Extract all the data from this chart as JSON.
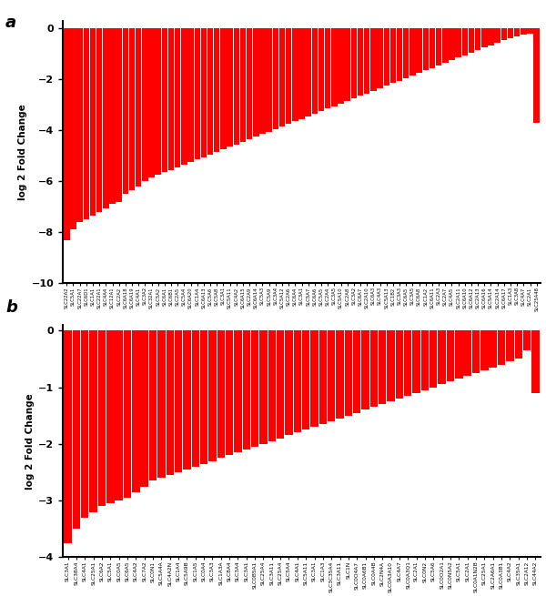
{
  "panel_a": {
    "labels": [
      "SLC22A2",
      "SLC5A1",
      "SLC22A7",
      "SLC6D1",
      "SLC1A1",
      "SLC22A1",
      "SLC4A4",
      "SLC12A1",
      "SLC2A2",
      "SLC6A18",
      "SLC6A19",
      "SLC4A1",
      "SLC3A2",
      "SLC32A1",
      "SLC5A2",
      "SLC6A1",
      "SLC6B1",
      "SLC2A5",
      "SLC5A4",
      "SLC6A20",
      "SLC1A4",
      "SLC6A13",
      "SLC5A6",
      "SLC5A8",
      "SLC3A1",
      "SLC5A11",
      "SLC4A2",
      "SLC6A15",
      "SLC2A9",
      "SLC6A14",
      "SLC5A3",
      "SLC5A9",
      "SLC3A4",
      "SLC5A12",
      "SLC2A6",
      "SLC6A4",
      "SLC3A1",
      "SLC5A7",
      "SLC6A6",
      "SLC5A5",
      "SLC2A4",
      "SLC3A5",
      "SLC5A10",
      "SLC2A8",
      "SLC3A2",
      "SLC6A7",
      "SLC2A10",
      "SLC6A3",
      "SLC4A3",
      "SLC5A13",
      "SLC1B2",
      "SLC3A3",
      "SLC6A5",
      "SLC3A5",
      "SLC6A8",
      "SLC1A2",
      "SLC6A11",
      "SLC2A3",
      "SLC2A7",
      "SLC4A5",
      "SLC2A11",
      "SLC6A10",
      "SLC6A12",
      "SLC2A13",
      "SLC6A16",
      "SLC5A14",
      "SLC2A14",
      "SLC6A17",
      "SLC1A3",
      "SLC3A8",
      "SLC4A7",
      "SLC2A1",
      "SLC25A48"
    ],
    "values": [
      -8.3,
      -7.9,
      -7.6,
      -7.5,
      -7.35,
      -7.2,
      -7.05,
      -6.9,
      -6.8,
      -6.5,
      -6.35,
      -6.2,
      -6.0,
      -5.85,
      -5.75,
      -5.65,
      -5.55,
      -5.45,
      -5.35,
      -5.25,
      -5.15,
      -5.05,
      -4.95,
      -4.85,
      -4.75,
      -4.65,
      -4.55,
      -4.45,
      -4.35,
      -4.25,
      -4.15,
      -4.05,
      -3.95,
      -3.85,
      -3.75,
      -3.65,
      -3.55,
      -3.45,
      -3.35,
      -3.25,
      -3.15,
      -3.05,
      -2.95,
      -2.85,
      -2.75,
      -2.65,
      -2.55,
      -2.45,
      -2.35,
      -2.25,
      -2.15,
      -2.05,
      -1.95,
      -1.85,
      -1.75,
      -1.65,
      -1.55,
      -1.45,
      -1.35,
      -1.25,
      -1.15,
      -1.05,
      -0.95,
      -0.85,
      -0.75,
      -0.65,
      -0.55,
      -0.45,
      -0.38,
      -0.3,
      -0.25,
      -0.2,
      -3.7
    ],
    "ylim": [
      -10,
      0.3
    ],
    "yticks": [
      0,
      -2,
      -4,
      -6,
      -8,
      -10
    ],
    "ylabel": "log 2 Fold Change"
  },
  "panel_b": {
    "labels": [
      "SLC3A1",
      "SLC38A4",
      "SLC4A1",
      "SLC25A1",
      "SLC6A2",
      "SLC5A1",
      "SLC0A5",
      "SLC6A5",
      "SLC4A2",
      "SLC7A2",
      "SLC0N1",
      "SLC5A4A",
      "SLC4A2N",
      "SLC1A4",
      "SLC5A9B",
      "SLC1A5",
      "SLC0A4",
      "SLC3A3",
      "SLC1A3A",
      "SLC8A4",
      "SLC3A4",
      "SLC3A1",
      "SLC0B5A1",
      "SLC25A4",
      "SLC3A11",
      "SLC25A4",
      "SLC5A4",
      "SLC4A1",
      "SLC5A11",
      "SLC3A1",
      "SLC1A3",
      "SLC3C35A4",
      "SLC3A11",
      "SLC1N",
      "SLC0O4A7",
      "SLC0A6B1",
      "SLC0A4B",
      "SLC2N4A",
      "SLC0A3A10",
      "SLC4A7",
      "SLC0A3Q1",
      "SLC2A1",
      "SLC0N2",
      "SLC5A6",
      "SLC0O2A1",
      "SLC0N5A2",
      "SLC5A1",
      "SLC2A1",
      "SLC0A1N2B",
      "SLC25A1",
      "SLC2A6A1",
      "SLC0A3B1",
      "SLC4A2",
      "SLC35A1",
      "SLC2A12",
      "SLC44A2"
    ],
    "values": [
      -3.75,
      -3.5,
      -3.3,
      -3.2,
      -3.1,
      -3.05,
      -3.0,
      -2.95,
      -2.85,
      -2.75,
      -2.65,
      -2.6,
      -2.55,
      -2.5,
      -2.45,
      -2.4,
      -2.35,
      -2.3,
      -2.25,
      -2.2,
      -2.15,
      -2.1,
      -2.05,
      -2.0,
      -1.95,
      -1.9,
      -1.85,
      -1.8,
      -1.75,
      -1.7,
      -1.65,
      -1.6,
      -1.55,
      -1.5,
      -1.45,
      -1.4,
      -1.35,
      -1.3,
      -1.25,
      -1.2,
      -1.15,
      -1.1,
      -1.05,
      -1.0,
      -0.95,
      -0.9,
      -0.85,
      -0.8,
      -0.75,
      -0.7,
      -0.65,
      -0.6,
      -0.55,
      -0.5,
      -0.35,
      -1.1
    ],
    "ylim": [
      -4,
      0.1
    ],
    "yticks": [
      0,
      -1,
      -2,
      -3,
      -4
    ],
    "ylabel": "log 2 Fold Change"
  },
  "bar_color": "#FF0000",
  "background_color": "#FFFFFF",
  "panel_labels": [
    "a",
    "b"
  ]
}
